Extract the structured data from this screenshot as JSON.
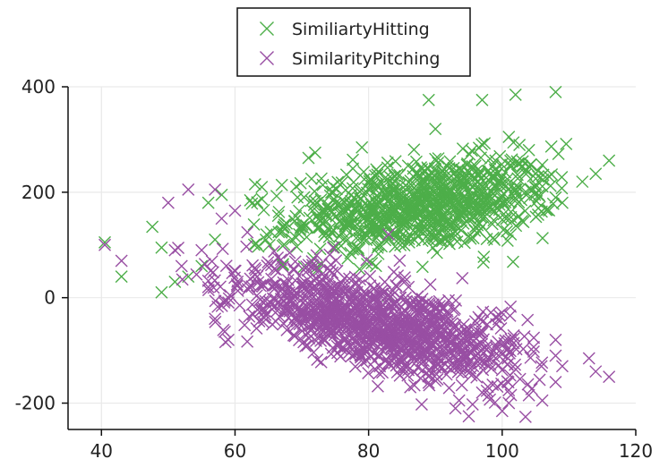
{
  "chart_data": {
    "type": "scatter",
    "xlim": [
      35,
      120
    ],
    "ylim": [
      -250,
      400
    ],
    "x_ticks": [
      40,
      60,
      80,
      100,
      120
    ],
    "y_ticks": [
      -200,
      0,
      200,
      400
    ],
    "grid": true,
    "marker": "x",
    "legend_position": "top-center",
    "series": [
      {
        "name": "SimiliartyHitting",
        "color": "#4dae49",
        "cluster": {
          "count": 900,
          "center": [
            88,
            175
          ],
          "x_std": 10,
          "y_std": 45,
          "covariance_xy": 150,
          "x_range": [
            45,
            110
          ],
          "y_range": [
            -20,
            330
          ]
        },
        "points": [
          [
            40.5,
            105
          ],
          [
            43,
            40
          ],
          [
            49,
            95
          ],
          [
            49,
            10
          ],
          [
            51,
            30
          ],
          [
            53,
            40
          ],
          [
            55,
            60
          ],
          [
            56,
            180
          ],
          [
            57,
            110
          ],
          [
            58,
            195
          ],
          [
            63,
            215
          ],
          [
            64,
            210
          ],
          [
            71,
            265
          ],
          [
            72,
            275
          ],
          [
            79,
            285
          ],
          [
            89,
            375
          ],
          [
            90,
            320
          ],
          [
            97,
            375
          ],
          [
            99,
            260
          ],
          [
            101,
            305
          ],
          [
            102,
            385
          ],
          [
            103,
            250
          ],
          [
            104,
            280
          ],
          [
            105,
            210
          ],
          [
            107,
            230
          ],
          [
            108,
            390
          ],
          [
            108,
            190
          ],
          [
            109,
            180
          ],
          [
            112,
            220
          ],
          [
            114,
            235
          ],
          [
            116,
            260
          ]
        ]
      },
      {
        "name": "SimilarityPitching",
        "color": "#984ea3",
        "cluster": {
          "count": 1100,
          "center": [
            82,
            -50
          ],
          "x_std": 11,
          "y_std": 55,
          "covariance_xy": -380,
          "x_range": [
            50,
            106
          ],
          "y_range": [
            -230,
            170
          ]
        },
        "points": [
          [
            40.5,
            100
          ],
          [
            43,
            70
          ],
          [
            50,
            180
          ],
          [
            51,
            90
          ],
          [
            52,
            60
          ],
          [
            53,
            205
          ],
          [
            55,
            90
          ],
          [
            56,
            20
          ],
          [
            57,
            205
          ],
          [
            57,
            -40
          ],
          [
            58,
            150
          ],
          [
            59,
            -80
          ],
          [
            60,
            165
          ],
          [
            83,
            120
          ],
          [
            93,
            -210
          ],
          [
            95,
            -225
          ],
          [
            97,
            -180
          ],
          [
            100,
            -215
          ],
          [
            101,
            -200
          ],
          [
            104,
            -185
          ],
          [
            106,
            -195
          ],
          [
            108,
            -80
          ],
          [
            108,
            -110
          ],
          [
            108,
            -160
          ],
          [
            109,
            -130
          ],
          [
            113,
            -115
          ],
          [
            114,
            -140
          ],
          [
            116,
            -150
          ]
        ]
      }
    ]
  }
}
